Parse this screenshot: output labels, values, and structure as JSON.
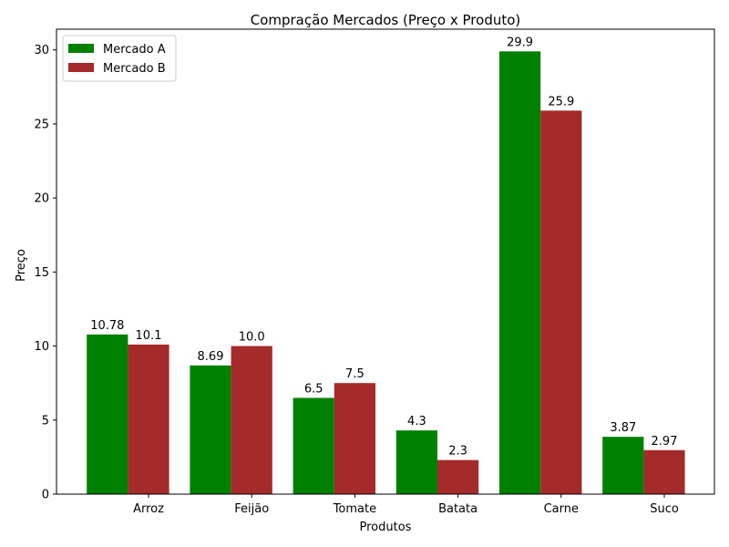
{
  "chart_data": {
    "type": "bar",
    "title": "Compração Mercados (Preço x Produto)",
    "xlabel": "Produtos",
    "ylabel": "Preço",
    "categories": [
      "Arroz",
      "Feijão",
      "Tomate",
      "Batata",
      "Carne",
      "Suco"
    ],
    "series": [
      {
        "name": "Mercado A",
        "color": "#008000",
        "values": [
          10.78,
          8.69,
          6.5,
          4.3,
          29.9,
          3.87
        ],
        "labels": [
          "10.78",
          "8.69",
          "6.5",
          "4.3",
          "29.9",
          "3.87"
        ]
      },
      {
        "name": "Mercado B",
        "color": "#a52a2a",
        "values": [
          10.1,
          10.0,
          7.5,
          2.3,
          25.9,
          2.97
        ],
        "labels": [
          "10.1",
          "10.0",
          "7.5",
          "2.3",
          "25.9",
          "2.97"
        ]
      }
    ],
    "ylim": [
      0,
      31.4
    ],
    "yticks": [
      0,
      5,
      10,
      15,
      20,
      25,
      30
    ],
    "legend": "top-left",
    "grid": false
  }
}
